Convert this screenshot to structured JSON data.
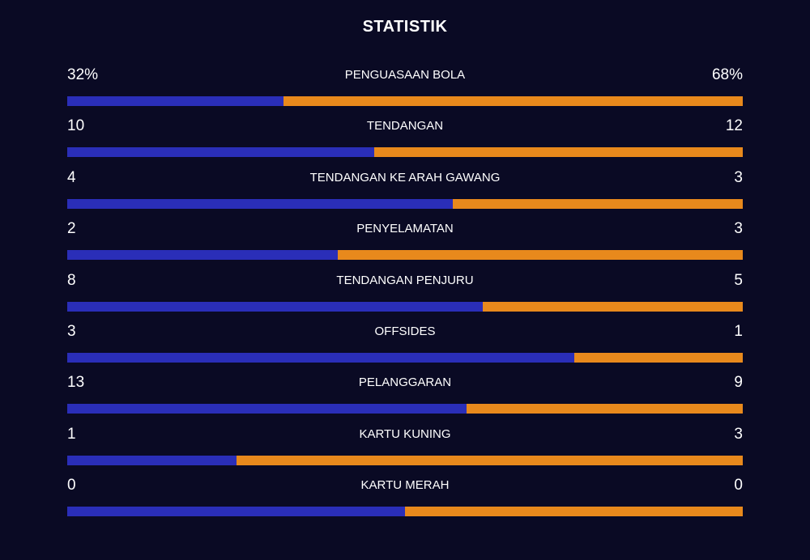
{
  "title": "STATISTIK",
  "colors": {
    "background": "#0a0a24",
    "home": "#2a2eb8",
    "away": "#e8891c"
  },
  "stats": [
    {
      "label": "PENGUASAAN BOLA",
      "home": "32%",
      "away": "68%",
      "home_share": 0.32
    },
    {
      "label": "TENDANGAN",
      "home": "10",
      "away": "12",
      "home_share": 0.455
    },
    {
      "label": "TENDANGAN KE ARAH GAWANG",
      "home": "4",
      "away": "3",
      "home_share": 0.571
    },
    {
      "label": "PENYELAMATAN",
      "home": "2",
      "away": "3",
      "home_share": 0.4
    },
    {
      "label": "TENDANGAN PENJURU",
      "home": "8",
      "away": "5",
      "home_share": 0.615
    },
    {
      "label": "OFFSIDES",
      "home": "3",
      "away": "1",
      "home_share": 0.75
    },
    {
      "label": "PELANGGARAN",
      "home": "13",
      "away": "9",
      "home_share": 0.591
    },
    {
      "label": "KARTU KUNING",
      "home": "1",
      "away": "3",
      "home_share": 0.25
    },
    {
      "label": "KARTU MERAH",
      "home": "0",
      "away": "0",
      "home_share": 0.5
    }
  ]
}
